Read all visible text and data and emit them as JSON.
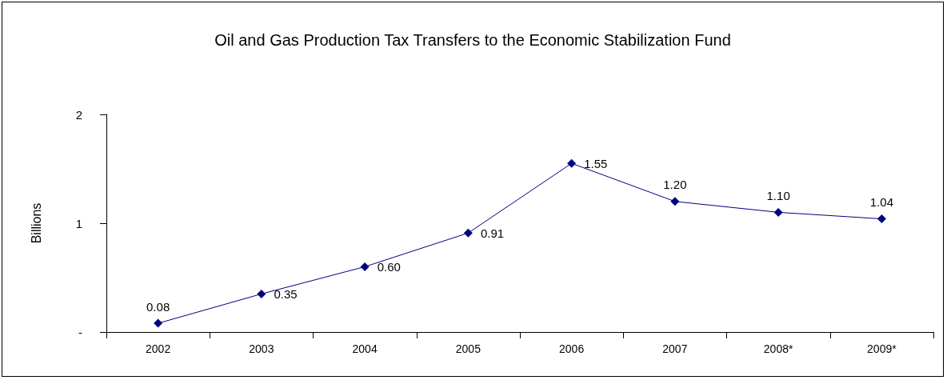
{
  "chart_data": {
    "type": "line",
    "title": "Oil and Gas Production Tax Transfers to the Economic Stabilization Fund",
    "ylabel": "Billions",
    "categories": [
      "2002",
      "2003",
      "2004",
      "2005",
      "2006",
      "2007",
      "2008*",
      "2009*"
    ],
    "series": [
      {
        "color": "#000080",
        "values": [
          0.08,
          0.35,
          0.6,
          0.91,
          1.55,
          1.2,
          1.1,
          1.04
        ],
        "value_labels": [
          "0.08",
          "0.35",
          "0.60",
          "0.91",
          "1.55",
          "1.20",
          "1.10",
          "1.04"
        ]
      }
    ],
    "ylim": [
      0,
      2
    ],
    "yticks": [
      {
        "value": 0,
        "label": "-"
      },
      1,
      2
    ],
    "grid": false,
    "marker": "diamond",
    "line_style": "solid"
  }
}
